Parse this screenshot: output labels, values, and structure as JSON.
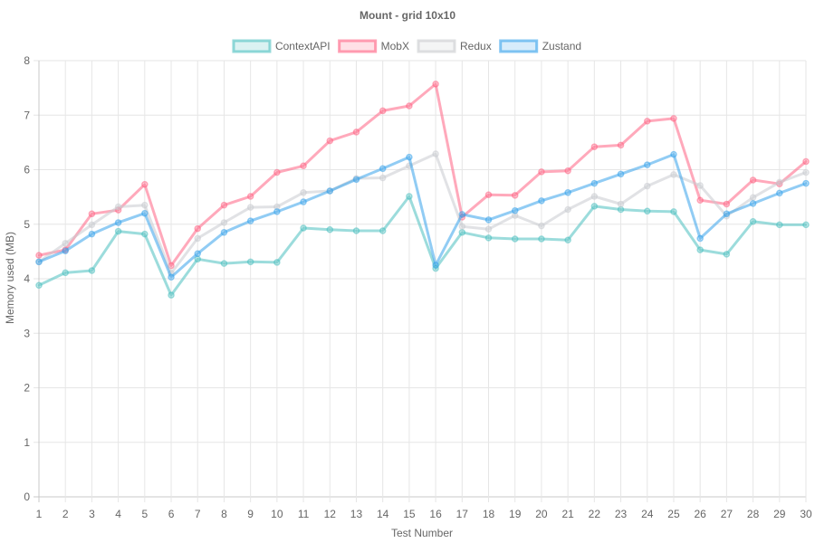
{
  "chart_data": {
    "type": "line",
    "title": "Mount - grid 10x10",
    "xlabel": "Test Number",
    "ylabel": "Memory used (MB)",
    "legend_position": "top-center",
    "grid": true,
    "ylim": [
      0,
      8
    ],
    "y_ticks": [
      "0",
      "1",
      "2",
      "3",
      "4",
      "5",
      "6",
      "7",
      "8"
    ],
    "x": [
      1,
      2,
      3,
      4,
      5,
      6,
      7,
      8,
      9,
      10,
      11,
      12,
      13,
      14,
      15,
      16,
      17,
      18,
      19,
      20,
      21,
      22,
      23,
      24,
      25,
      26,
      27,
      28,
      29,
      30
    ],
    "series": [
      {
        "name": "ContextAPI",
        "color": "#4bc0c0",
        "values": [
          3.88,
          4.11,
          4.15,
          4.87,
          4.82,
          3.7,
          4.36,
          4.28,
          4.31,
          4.3,
          4.93,
          4.9,
          4.88,
          4.88,
          5.51,
          4.19,
          4.85,
          4.75,
          4.73,
          4.73,
          4.71,
          5.33,
          5.27,
          5.24,
          5.23,
          4.53,
          4.45,
          5.05,
          4.99,
          4.99
        ]
      },
      {
        "name": "MobX",
        "color": "#ff6384",
        "values": [
          4.43,
          4.53,
          5.19,
          5.26,
          5.73,
          4.24,
          4.92,
          5.35,
          5.51,
          5.95,
          6.07,
          6.53,
          6.69,
          7.08,
          7.17,
          7.57,
          5.13,
          5.54,
          5.53,
          5.96,
          5.98,
          6.42,
          6.45,
          6.89,
          6.94,
          5.44,
          5.37,
          5.81,
          5.74,
          6.15
        ]
      },
      {
        "name": "Redux",
        "color": "#c9cbcf",
        "values": [
          4.31,
          4.65,
          4.99,
          5.32,
          5.35,
          4.1,
          4.74,
          5.03,
          5.31,
          5.32,
          5.58,
          5.61,
          5.84,
          5.85,
          6.07,
          6.29,
          4.96,
          4.91,
          5.16,
          4.97,
          5.27,
          5.51,
          5.37,
          5.7,
          5.91,
          5.71,
          5.15,
          5.49,
          5.77,
          5.95
        ]
      },
      {
        "name": "Zustand",
        "color": "#36a2eb",
        "values": [
          4.31,
          4.51,
          4.82,
          5.03,
          5.2,
          4.03,
          4.46,
          4.85,
          5.06,
          5.23,
          5.41,
          5.61,
          5.82,
          6.02,
          6.23,
          4.25,
          5.18,
          5.08,
          5.25,
          5.43,
          5.58,
          5.75,
          5.92,
          6.09,
          6.28,
          4.74,
          5.19,
          5.38,
          5.57,
          5.75
        ]
      }
    ]
  }
}
